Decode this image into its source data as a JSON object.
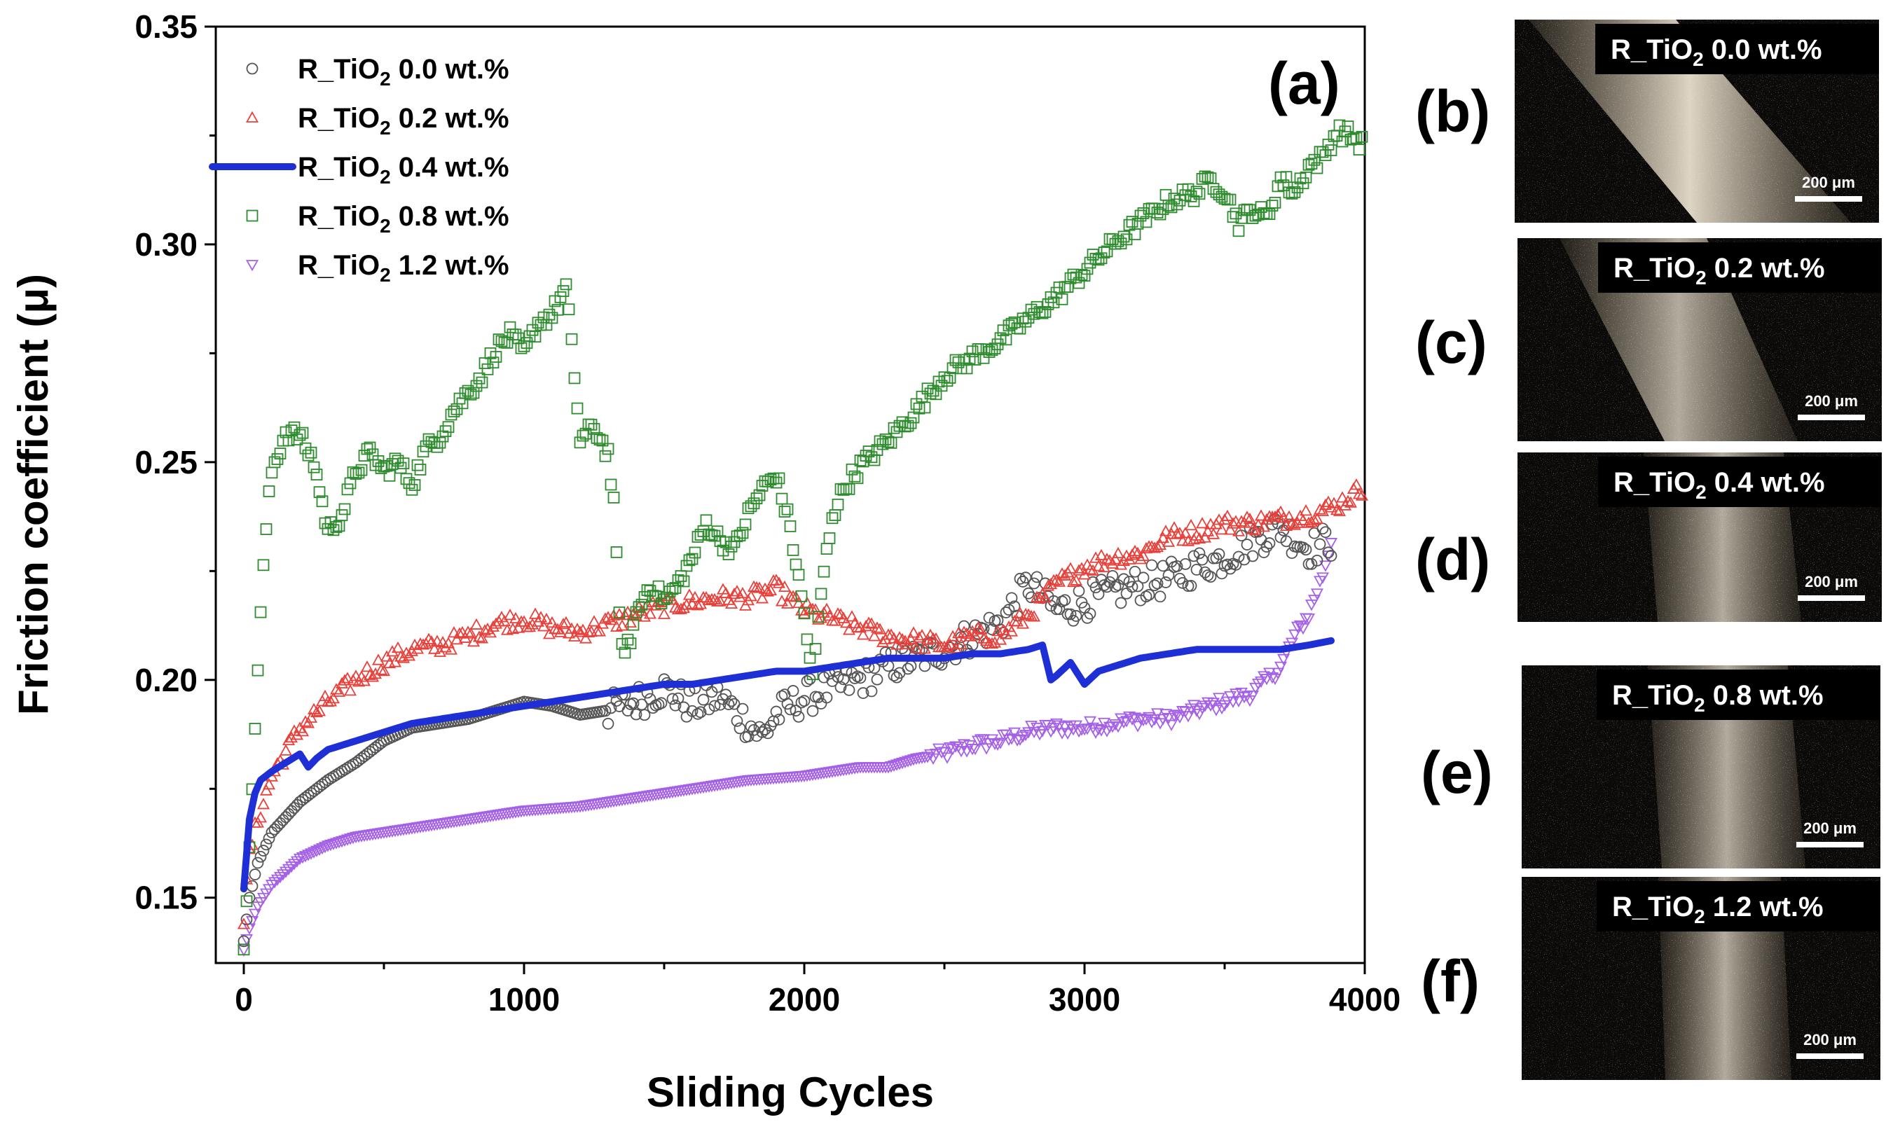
{
  "chart_data": {
    "type": "scatter",
    "panel_label": "(a)",
    "xlabel": "Sliding Cycles",
    "ylabel": "Friction coefficient (μ)",
    "xlim": [
      -100,
      4000
    ],
    "ylim": [
      0.135,
      0.35
    ],
    "xticks": [
      0,
      1000,
      2000,
      3000,
      4000
    ],
    "xtick_labels": [
      "0",
      "1000",
      "2000",
      "3000",
      "4000"
    ],
    "yticks": [
      0.15,
      0.2,
      0.25,
      0.3,
      0.35
    ],
    "ytick_labels": [
      "0.15",
      "0.20",
      "0.25",
      "0.30",
      "0.35"
    ],
    "legend_position": "top-left",
    "series": [
      {
        "name": "R_TiO2 0.0 wt.%",
        "label_main": "R_TiO",
        "label_sub": "2",
        "label_rest": " 0.0 wt.%",
        "marker": "circle",
        "color": "#555555",
        "noise": 0.004,
        "noise_start": 1300,
        "x": [
          0,
          20,
          50,
          100,
          200,
          300,
          400,
          500,
          600,
          700,
          800,
          900,
          1000,
          1100,
          1200,
          1300,
          1400,
          1500,
          1600,
          1700,
          1800,
          1850,
          1900,
          2000,
          2100,
          2200,
          2300,
          2400,
          2500,
          2600,
          2700,
          2800,
          2900,
          3000,
          3100,
          3200,
          3300,
          3400,
          3500,
          3600,
          3700,
          3800,
          3880
        ],
        "y": [
          0.14,
          0.15,
          0.158,
          0.165,
          0.172,
          0.177,
          0.181,
          0.186,
          0.189,
          0.19,
          0.191,
          0.193,
          0.195,
          0.194,
          0.192,
          0.193,
          0.195,
          0.198,
          0.194,
          0.196,
          0.19,
          0.187,
          0.192,
          0.196,
          0.198,
          0.2,
          0.203,
          0.205,
          0.207,
          0.21,
          0.213,
          0.222,
          0.216,
          0.218,
          0.22,
          0.222,
          0.223,
          0.226,
          0.228,
          0.232,
          0.235,
          0.23,
          0.232
        ]
      },
      {
        "name": "R_TiO2 0.2 wt.%",
        "label_main": "R_TiO",
        "label_sub": "2",
        "label_rest": " 0.2 wt.%",
        "marker": "triangle-up",
        "color": "#e8403a",
        "noise": 0.002,
        "noise_start": 0,
        "x": [
          0,
          20,
          50,
          100,
          200,
          300,
          400,
          500,
          600,
          700,
          800,
          900,
          1000,
          1100,
          1200,
          1300,
          1400,
          1500,
          1600,
          1700,
          1800,
          1900,
          2000,
          2100,
          2200,
          2300,
          2400,
          2500,
          2600,
          2700,
          2800,
          2900,
          3000,
          3100,
          3200,
          3300,
          3400,
          3500,
          3600,
          3700,
          3800,
          3900,
          3990
        ],
        "y": [
          0.145,
          0.16,
          0.168,
          0.178,
          0.189,
          0.195,
          0.2,
          0.204,
          0.207,
          0.208,
          0.21,
          0.213,
          0.214,
          0.212,
          0.211,
          0.213,
          0.215,
          0.217,
          0.218,
          0.219,
          0.219,
          0.221,
          0.216,
          0.214,
          0.212,
          0.21,
          0.209,
          0.208,
          0.21,
          0.21,
          0.215,
          0.222,
          0.226,
          0.228,
          0.229,
          0.233,
          0.234,
          0.236,
          0.236,
          0.237,
          0.238,
          0.24,
          0.244
        ]
      },
      {
        "name": "R_TiO2 0.4 wt.%",
        "label_main": "R_TiO",
        "label_sub": "2",
        "label_rest": " 0.4 wt.%",
        "marker": "line",
        "color": "#1f2fd6",
        "noise": 0,
        "noise_start": 0,
        "x": [
          0,
          10,
          20,
          40,
          60,
          100,
          150,
          200,
          230,
          260,
          300,
          400,
          500,
          600,
          700,
          800,
          900,
          1000,
          1100,
          1200,
          1300,
          1400,
          1500,
          1600,
          1700,
          1800,
          1900,
          2000,
          2100,
          2200,
          2300,
          2400,
          2500,
          2600,
          2700,
          2800,
          2850,
          2880,
          2900,
          2950,
          3000,
          3050,
          3100,
          3200,
          3300,
          3400,
          3500,
          3600,
          3700,
          3800,
          3880
        ],
        "y": [
          0.152,
          0.16,
          0.168,
          0.174,
          0.177,
          0.179,
          0.181,
          0.183,
          0.18,
          0.182,
          0.184,
          0.186,
          0.188,
          0.19,
          0.191,
          0.192,
          0.193,
          0.194,
          0.195,
          0.196,
          0.197,
          0.198,
          0.199,
          0.199,
          0.2,
          0.201,
          0.202,
          0.202,
          0.203,
          0.204,
          0.205,
          0.205,
          0.205,
          0.206,
          0.206,
          0.207,
          0.208,
          0.2,
          0.201,
          0.204,
          0.199,
          0.202,
          0.203,
          0.205,
          0.206,
          0.207,
          0.207,
          0.207,
          0.207,
          0.208,
          0.209
        ]
      },
      {
        "name": "R_TiO2 0.8 wt.%",
        "label_main": "R_TiO",
        "label_sub": "2",
        "label_rest": " 0.8 wt.%",
        "marker": "square",
        "color": "#2e8b2e",
        "noise": 0.002,
        "noise_start": 0,
        "x": [
          0,
          20,
          40,
          60,
          80,
          100,
          150,
          200,
          250,
          300,
          350,
          400,
          450,
          500,
          550,
          600,
          650,
          700,
          750,
          800,
          850,
          900,
          950,
          1000,
          1050,
          1100,
          1150,
          1180,
          1200,
          1250,
          1300,
          1320,
          1340,
          1360,
          1400,
          1450,
          1500,
          1550,
          1600,
          1650,
          1700,
          1750,
          1800,
          1850,
          1900,
          1950,
          2000,
          2030,
          2060,
          2100,
          2150,
          2200,
          2300,
          2400,
          2500,
          2600,
          2700,
          2800,
          2900,
          3000,
          3100,
          3200,
          3300,
          3400,
          3450,
          3500,
          3550,
          3600,
          3650,
          3700,
          3750,
          3800,
          3850,
          3900,
          3950,
          3990
        ],
        "y": [
          0.14,
          0.16,
          0.19,
          0.215,
          0.235,
          0.248,
          0.257,
          0.256,
          0.25,
          0.234,
          0.238,
          0.248,
          0.252,
          0.248,
          0.25,
          0.245,
          0.253,
          0.256,
          0.262,
          0.266,
          0.27,
          0.276,
          0.279,
          0.275,
          0.282,
          0.284,
          0.29,
          0.27,
          0.255,
          0.258,
          0.252,
          0.24,
          0.215,
          0.205,
          0.215,
          0.222,
          0.218,
          0.222,
          0.228,
          0.236,
          0.232,
          0.23,
          0.238,
          0.244,
          0.247,
          0.235,
          0.215,
          0.2,
          0.22,
          0.238,
          0.245,
          0.249,
          0.255,
          0.262,
          0.27,
          0.274,
          0.278,
          0.283,
          0.288,
          0.294,
          0.3,
          0.305,
          0.31,
          0.312,
          0.315,
          0.312,
          0.305,
          0.308,
          0.306,
          0.315,
          0.312,
          0.318,
          0.32,
          0.326,
          0.325,
          0.323
        ]
      },
      {
        "name": "R_TiO2 1.2 wt.%",
        "label_main": "R_TiO",
        "label_sub": "2",
        "label_rest": " 1.2 wt.%",
        "marker": "triangle-down",
        "color": "#a560e8",
        "noise": 0.0015,
        "noise_start": 2450,
        "x": [
          0,
          20,
          50,
          100,
          150,
          200,
          300,
          400,
          500,
          600,
          700,
          800,
          900,
          1000,
          1200,
          1400,
          1600,
          1800,
          2000,
          2200,
          2300,
          2400,
          2500,
          2600,
          2700,
          2800,
          2900,
          3000,
          3100,
          3200,
          3300,
          3400,
          3500,
          3600,
          3700,
          3750,
          3800,
          3850,
          3880
        ],
        "y": [
          0.138,
          0.143,
          0.148,
          0.153,
          0.156,
          0.159,
          0.162,
          0.164,
          0.165,
          0.166,
          0.167,
          0.168,
          0.169,
          0.17,
          0.171,
          0.173,
          0.175,
          0.177,
          0.178,
          0.18,
          0.18,
          0.182,
          0.183,
          0.185,
          0.186,
          0.188,
          0.189,
          0.189,
          0.19,
          0.191,
          0.191,
          0.193,
          0.195,
          0.197,
          0.203,
          0.21,
          0.215,
          0.224,
          0.232
        ]
      }
    ]
  },
  "micrographs": [
    {
      "letter": "(b)",
      "label_main": "R_TiO",
      "label_sub": "2",
      "label_rest": " 0.0 wt.%",
      "scale": "200 μm"
    },
    {
      "letter": "(c)",
      "label_main": "R_TiO",
      "label_sub": "2",
      "label_rest": " 0.2 wt.%",
      "scale": "200 μm"
    },
    {
      "letter": "(d)",
      "label_main": "R_TiO",
      "label_sub": "2",
      "label_rest": " 0.4 wt.%",
      "scale": "200 μm"
    },
    {
      "letter": "(e)",
      "label_main": "R_TiO",
      "label_sub": "2",
      "label_rest": " 0.8 wt.%",
      "scale": "200 μm"
    },
    {
      "letter": "(f)",
      "label_main": "R_TiO",
      "label_sub": "2",
      "label_rest": " 1.2 wt.%",
      "scale": "200 μm"
    }
  ]
}
